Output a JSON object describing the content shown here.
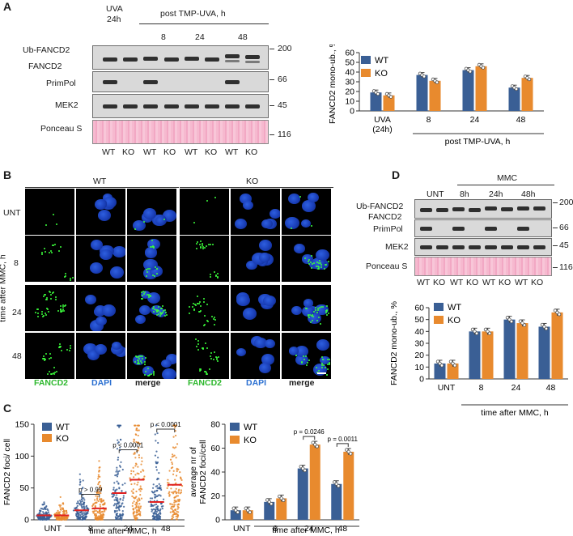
{
  "panels": {
    "A": "A",
    "B": "B",
    "C": "C",
    "D": "D"
  },
  "panelA": {
    "uva_header": [
      "UVA",
      "24h"
    ],
    "post_header": "post TMP-UVA, h",
    "time_labels": [
      "8",
      "24",
      "48"
    ],
    "rows": [
      "Ub-FANCD2",
      "FANCD2",
      "PrimPol",
      "MEK2",
      "Ponceau S"
    ],
    "mw": [
      "200",
      "66",
      "45",
      "116"
    ],
    "lanes": [
      "WT",
      "KO",
      "WT",
      "KO",
      "WT",
      "KO",
      "WT",
      "KO"
    ]
  },
  "panelB": {
    "groups": [
      "WT",
      "KO"
    ],
    "rows": [
      "UNT",
      "8",
      "24",
      "48"
    ],
    "side_label": "time after MMC, h",
    "channels": [
      "FANCD2",
      "DAPI",
      "merge",
      "FANCD2",
      "DAPI",
      "merge"
    ],
    "colors": {
      "fancd2": "#2eb82e",
      "dapi": "#2a6fd1"
    }
  },
  "panelD": {
    "mmc_header": "MMC",
    "unt": "UNT",
    "time_labels": [
      "8h",
      "24h",
      "48h"
    ],
    "rows": [
      "Ub-FANCD2",
      "FANCD2",
      "PrimPol",
      "MEK2",
      "Ponceau S"
    ],
    "mw": [
      "200",
      "66",
      "45",
      "116"
    ],
    "lanes": [
      "WT",
      "KO",
      "WT",
      "KO",
      "WT",
      "KO",
      "WT",
      "KO"
    ]
  },
  "chart_data": [
    {
      "id": "A-bar",
      "type": "bar",
      "categories": [
        "UVA (24h)",
        "8",
        "24",
        "48"
      ],
      "category_lines": [
        [
          "UVA",
          "(24h)"
        ],
        [
          "8"
        ],
        [
          "24"
        ],
        [
          "48"
        ]
      ],
      "series": [
        {
          "name": "WT",
          "values": [
            19,
            37,
            42,
            24
          ]
        },
        {
          "name": "KO",
          "values": [
            16,
            31,
            46,
            34
          ]
        }
      ],
      "ylabel": "FANCD2 mono-ub., %",
      "xlabel": "post TMP-UVA, h",
      "ylim": [
        0,
        60
      ],
      "yticks": [
        0,
        10,
        20,
        30,
        40,
        50,
        60
      ],
      "colors": [
        "#3a5f95",
        "#e88a2e"
      ],
      "legend": "top-left"
    },
    {
      "id": "D-bar",
      "type": "bar",
      "categories": [
        "UNT",
        "8",
        "24",
        "48"
      ],
      "series": [
        {
          "name": "WT",
          "values": [
            13,
            40,
            50,
            44
          ]
        },
        {
          "name": "KO",
          "values": [
            13,
            40,
            47,
            56
          ]
        }
      ],
      "ylabel": "FANCD2 mono-ub., %",
      "xlabel": "time after MMC, h",
      "ylim": [
        0,
        60
      ],
      "yticks": [
        0,
        10,
        20,
        30,
        40,
        50,
        60
      ],
      "colors": [
        "#3a5f95",
        "#e88a2e"
      ],
      "legend": "top-left"
    },
    {
      "id": "C-scatter",
      "type": "scatter",
      "categories": [
        "UNT",
        "8",
        "24",
        "48"
      ],
      "series": [
        {
          "name": "WT",
          "medians": [
            7,
            15,
            42,
            28
          ]
        },
        {
          "name": "KO",
          "medians": [
            7,
            18,
            63,
            55
          ]
        }
      ],
      "ylabel": "FANCD2 foci/ cell",
      "xlabel": "time after MMC, h",
      "ylim": [
        0,
        150
      ],
      "yticks": [
        0,
        50,
        100,
        150
      ],
      "pvalues": [
        "p > 0.99",
        "p < 0.0001",
        "p < 0.0001"
      ],
      "colors": [
        "#3a5f95",
        "#e88a2e"
      ],
      "median_color": "#e02020",
      "legend": "top-left"
    },
    {
      "id": "C-bar",
      "type": "bar",
      "categories": [
        "UNT",
        "8",
        "24",
        "48"
      ],
      "series": [
        {
          "name": "WT",
          "values": [
            8,
            15,
            43,
            30
          ]
        },
        {
          "name": "KO",
          "values": [
            8,
            18,
            63,
            57
          ]
        }
      ],
      "ylabel": "average nr of FANCD2 foci/cell",
      "ylabel_lines": [
        "average nr of",
        "FANCD2 foci/cell"
      ],
      "xlabel": "time after MMC, h",
      "ylim": [
        0,
        80
      ],
      "yticks": [
        0,
        20,
        40,
        60,
        80
      ],
      "pvalues": [
        "p = 0.0246",
        "p = 0.0011"
      ],
      "colors": [
        "#3a5f95",
        "#e88a2e"
      ],
      "legend": "top-left"
    }
  ]
}
